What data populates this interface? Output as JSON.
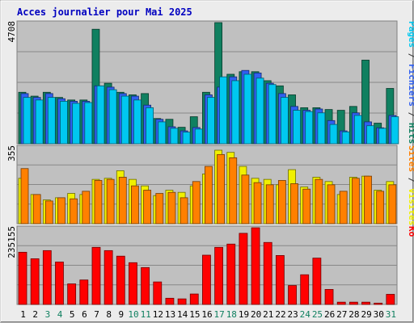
{
  "chart_data": {
    "type": "bar",
    "title": "Acces journalier pour Mai 2025",
    "categories": [
      "1",
      "2",
      "3",
      "4",
      "5",
      "6",
      "7",
      "8",
      "9",
      "10",
      "11",
      "12",
      "13",
      "14",
      "15",
      "16",
      "17",
      "18",
      "19",
      "20",
      "21",
      "22",
      "23",
      "24",
      "25",
      "26",
      "27",
      "28",
      "29",
      "30",
      "31"
    ],
    "weekend_days": [
      "3",
      "4",
      "10",
      "11",
      "17",
      "18",
      "24",
      "25",
      "31"
    ],
    "panels": [
      {
        "id": "top",
        "ymax_label": "4708",
        "ylim": [
          0,
          4708
        ],
        "right_labels": [
          {
            "text": "Pages",
            "color": "#00c8f0"
          },
          {
            "text": " / ",
            "color": "#333333"
          },
          {
            "text": "Fichiers",
            "color": "#3060f0"
          },
          {
            "text": " / ",
            "color": "#333333"
          },
          {
            "text": "Hits",
            "color": "#108060"
          }
        ],
        "series": [
          {
            "name": "Hits",
            "color": "#108060",
            "values": [
              2000,
              1850,
              2000,
              1800,
              1700,
              1700,
              4450,
              2350,
              2000,
              1900,
              1950,
              980,
              950,
              640,
              1050,
              2000,
              4750,
              2700,
              2800,
              2800,
              2450,
              2250,
              1900,
              1400,
              1400,
              1330,
              1300,
              1450,
              3250,
              800,
              2150
            ]
          },
          {
            "name": "Fichiers",
            "color": "#3060f0",
            "values": [
              1950,
              1800,
              1950,
              1750,
              1650,
              1650,
              2250,
              2200,
              1950,
              1850,
              1500,
              950,
              660,
              500,
              630,
              1900,
              2200,
              2600,
              2850,
              2750,
              2350,
              1950,
              1450,
              1300,
              1350,
              900,
              500,
              1200,
              850,
              620,
              1100
            ]
          },
          {
            "name": "Pages",
            "color": "#00c8f0",
            "values": [
              1800,
              1700,
              1800,
              1650,
              1570,
              1600,
              2250,
              2100,
              1850,
              1700,
              1400,
              850,
              600,
              450,
              570,
              1800,
              2600,
              2450,
              2700,
              2550,
              2300,
              1800,
              1300,
              1250,
              1200,
              750,
              460,
              1100,
              700,
              600,
              1050
            ]
          }
        ]
      },
      {
        "id": "mid",
        "ymax_label": "355",
        "ylim": [
          0,
          355
        ],
        "right_labels": [
          {
            "text": "Sites",
            "color": "#ff8000"
          },
          {
            "text": " / ",
            "color": "#333333"
          },
          {
            "text": "Visites",
            "color": "#f0f000"
          }
        ],
        "series": [
          {
            "name": "Visites",
            "color": "#f0f000",
            "values": [
              210,
              135,
              110,
              120,
              140,
              135,
              205,
              210,
              245,
              205,
              175,
              130,
              155,
              145,
              175,
              230,
              340,
              330,
              265,
              210,
              205,
              180,
              250,
              170,
              215,
              195,
              135,
              215,
              220,
              155,
              195
            ]
          },
          {
            "name": "Sites",
            "color": "#ff8000",
            "values": [
              255,
              135,
              105,
              120,
              115,
              150,
              200,
              205,
              215,
              175,
              155,
              140,
              145,
              120,
              195,
              265,
              320,
              305,
              225,
              190,
              180,
              200,
              185,
              160,
              205,
              180,
              150,
              210,
              220,
              150,
              180
            ]
          }
        ]
      },
      {
        "id": "bot",
        "ymax_label": "235155",
        "ylim": [
          0,
          235155
        ],
        "right_labels": [
          {
            "text": "Ko",
            "color": "#ff0000"
          }
        ],
        "series": [
          {
            "name": "Ko",
            "color": "#ff0000",
            "values": [
              160000,
              140000,
              165000,
              130000,
              63000,
              75000,
              175000,
              165000,
              148000,
              128000,
              113000,
              69000,
              19000,
              17000,
              32000,
              151000,
              175000,
              185000,
              218000,
              235000,
              190000,
              150000,
              58000,
              91000,
              142000,
              46000,
              7000,
              7000,
              7000,
              4000,
              31000
            ]
          }
        ]
      }
    ],
    "grid": true,
    "colors": {
      "title": "#0000c0",
      "background": "#c0c0c0",
      "frame": "#ececec",
      "day_weekday": "#000000",
      "day_weekend": "#108060"
    }
  }
}
